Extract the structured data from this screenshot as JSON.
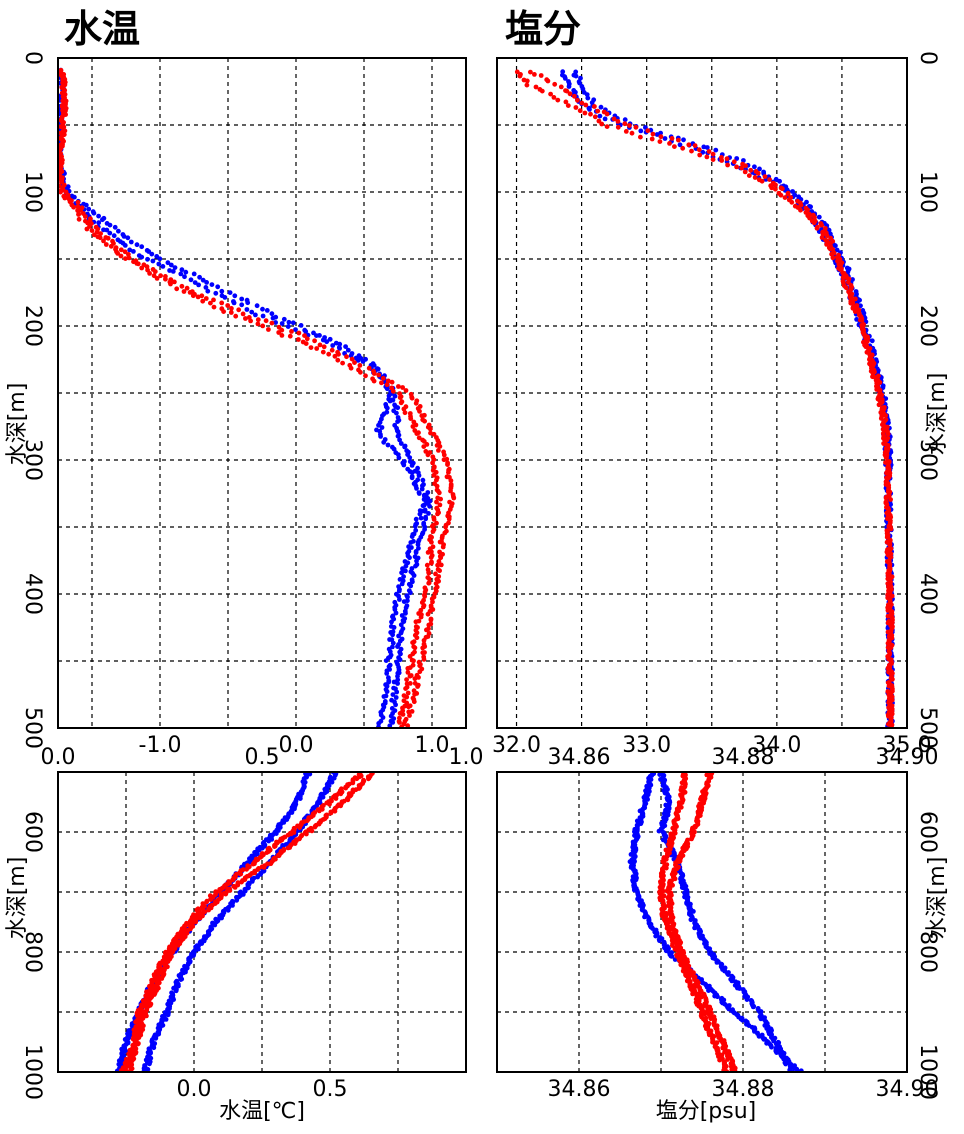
{
  "colors": {
    "cast_a": "#0000ff",
    "cast_b": "#ff0000",
    "frame": "#000000"
  },
  "chart_data": [
    {
      "id": "temp_upper",
      "type": "scatter",
      "title": "水温",
      "xlabel": "",
      "ylabel": "水深[m]",
      "xlim": [
        -1.75,
        1.25
      ],
      "ylim": [
        500,
        0
      ],
      "x_ticks": [
        -1.0,
        0.0,
        1.0
      ],
      "x_tick_labels": [
        "-1.0",
        "0.0",
        "1.0"
      ],
      "x_grid": [
        -1.5,
        -1.0,
        -0.5,
        0.0,
        0.5,
        1.0
      ],
      "y_ticks": [
        0,
        100,
        200,
        300,
        400,
        500
      ],
      "y_tick_labels": [
        "0",
        "100",
        "200",
        "300",
        "400",
        "500"
      ],
      "y_grid": [
        50,
        100,
        150,
        200,
        250,
        300,
        350,
        400,
        450
      ],
      "grid": true,
      "series": [
        {
          "color": "blue",
          "profiles": [
            {
              "x": [
                -1.72,
                -1.72,
                -1.73,
                -1.74,
                -1.7,
                -1.6,
                -1.4,
                -1.1,
                -0.7,
                -0.3,
                0.2,
                0.55,
                0.7,
                0.6,
                0.78,
                0.95,
                0.85,
                0.75,
                0.72,
                0.68,
                0.65,
                0.62
              ],
              "y": [
                10,
                30,
                60,
                80,
                100,
                110,
                130,
                150,
                170,
                190,
                210,
                230,
                250,
                280,
                300,
                330,
                360,
                400,
                420,
                450,
                480,
                500
              ]
            },
            {
              "x": [
                -1.72,
                -1.72,
                -1.73,
                -1.74,
                -1.68,
                -1.55,
                -1.3,
                -1.0,
                -0.6,
                -0.2,
                0.25,
                0.6,
                0.72,
                0.75,
                0.85,
                0.98,
                0.92,
                0.82,
                0.78,
                0.75,
                0.72,
                0.7
              ],
              "y": [
                10,
                30,
                60,
                80,
                100,
                110,
                130,
                150,
                170,
                190,
                210,
                230,
                250,
                280,
                300,
                330,
                360,
                400,
                420,
                450,
                480,
                500
              ]
            }
          ]
        },
        {
          "color": "red",
          "profiles": [
            {
              "x": [
                -1.72,
                -1.7,
                -1.72,
                -1.74,
                -1.72,
                -1.65,
                -1.5,
                -1.25,
                -0.9,
                -0.5,
                0.0,
                0.4,
                0.75,
                0.9,
                1.0,
                1.05,
                1.0,
                0.95,
                0.9,
                0.85,
                0.8,
                0.76
              ],
              "y": [
                10,
                30,
                60,
                80,
                100,
                110,
                130,
                150,
                170,
                190,
                210,
                230,
                250,
                280,
                300,
                330,
                360,
                400,
                420,
                450,
                480,
                500
              ]
            },
            {
              "x": [
                -1.72,
                -1.7,
                -1.72,
                -1.74,
                -1.7,
                -1.6,
                -1.45,
                -1.2,
                -0.85,
                -0.4,
                0.1,
                0.5,
                0.85,
                1.0,
                1.1,
                1.15,
                1.08,
                1.02,
                0.98,
                0.92,
                0.86,
                0.8
              ],
              "y": [
                10,
                30,
                60,
                80,
                100,
                110,
                130,
                150,
                170,
                190,
                210,
                230,
                250,
                280,
                300,
                330,
                360,
                400,
                420,
                450,
                480,
                500
              ]
            }
          ]
        }
      ]
    },
    {
      "id": "salt_upper",
      "type": "scatter",
      "title": "塩分",
      "xlabel": "",
      "ylabel": "水深[m]",
      "xlim": [
        31.85,
        35.0
      ],
      "ylim": [
        500,
        0
      ],
      "x_ticks": [
        32.0,
        33.0,
        34.0,
        35.0
      ],
      "x_tick_labels": [
        "32.0",
        "33.0",
        "34.0",
        "35.0"
      ],
      "x_grid": [
        32.0,
        32.5,
        33.0,
        33.5,
        34.0,
        34.5
      ],
      "y_ticks": [
        0,
        100,
        200,
        300,
        400,
        500
      ],
      "y_tick_labels": [
        "0",
        "100",
        "200",
        "300",
        "400",
        "500"
      ],
      "y_grid": [
        50,
        100,
        150,
        200,
        250,
        300,
        350,
        400,
        450
      ],
      "grid": true,
      "series": [
        {
          "color": "blue",
          "profiles": [
            {
              "x": [
                32.35,
                32.4,
                32.5,
                32.8,
                33.3,
                33.7,
                34.0,
                34.2,
                34.35,
                34.5,
                34.65,
                34.78,
                34.83,
                34.85,
                34.86,
                34.87,
                34.87,
                34.87
              ],
              "y": [
                10,
                20,
                35,
                50,
                65,
                80,
                95,
                110,
                130,
                160,
                200,
                240,
                270,
                300,
                350,
                400,
                450,
                500
              ]
            },
            {
              "x": [
                32.45,
                32.5,
                32.6,
                32.9,
                33.4,
                33.8,
                34.05,
                34.25,
                34.4,
                34.55,
                34.68,
                34.8,
                34.85,
                34.86,
                34.86,
                34.87,
                34.87,
                34.87
              ],
              "y": [
                10,
                20,
                35,
                50,
                65,
                80,
                95,
                110,
                130,
                160,
                200,
                240,
                270,
                300,
                350,
                400,
                450,
                500
              ]
            }
          ]
        },
        {
          "color": "red",
          "profiles": [
            {
              "x": [
                32.0,
                32.1,
                32.4,
                32.7,
                33.2,
                33.65,
                33.95,
                34.15,
                34.35,
                34.5,
                34.65,
                34.76,
                34.82,
                34.85,
                34.86,
                34.87,
                34.87,
                34.87
              ],
              "y": [
                10,
                20,
                35,
                50,
                65,
                80,
                95,
                110,
                130,
                160,
                200,
                240,
                270,
                300,
                350,
                400,
                450,
                500
              ]
            },
            {
              "x": [
                32.1,
                32.3,
                32.55,
                32.85,
                33.35,
                33.75,
                34.0,
                34.2,
                34.38,
                34.52,
                34.66,
                34.77,
                34.83,
                34.85,
                34.86,
                34.87,
                34.87,
                34.87
              ],
              "y": [
                10,
                20,
                35,
                50,
                65,
                80,
                95,
                110,
                130,
                160,
                200,
                240,
                270,
                300,
                350,
                400,
                450,
                500
              ]
            }
          ]
        }
      ]
    },
    {
      "id": "temp_lower",
      "type": "scatter",
      "title": "",
      "xlabel": "水温[℃]",
      "ylabel": "水深[m]",
      "xlim": [
        -0.5,
        1.0
      ],
      "ylim": [
        1000,
        500
      ],
      "x_ticks": [
        0.0,
        0.5
      ],
      "x_tick_labels": [
        "0.0",
        "0.5"
      ],
      "x_top_labels": [
        "0.0",
        "0.5",
        "1.0"
      ],
      "x_top_values": [
        -0.5,
        0.25,
        1.0
      ],
      "x_grid": [
        -0.25,
        0.0,
        0.25,
        0.5,
        0.75
      ],
      "y_ticks": [
        600,
        800,
        1000
      ],
      "y_tick_labels": [
        "600",
        "800",
        "1000"
      ],
      "y_grid": [
        600,
        700,
        800,
        900
      ],
      "grid": true,
      "series": [
        {
          "color": "blue",
          "profiles": [
            {
              "x": [
                0.42,
                0.38,
                0.3,
                0.2,
                0.1,
                0.0,
                -0.08,
                -0.15,
                -0.2,
                -0.25,
                -0.28
              ],
              "y": [
                500,
                550,
                600,
                650,
                700,
                750,
                800,
                850,
                900,
                950,
                1000
              ]
            },
            {
              "x": [
                0.52,
                0.46,
                0.38,
                0.28,
                0.18,
                0.08,
                0.0,
                -0.06,
                -0.1,
                -0.15,
                -0.18
              ],
              "y": [
                500,
                550,
                600,
                650,
                700,
                750,
                800,
                850,
                900,
                950,
                1000
              ]
            }
          ]
        },
        {
          "color": "red",
          "profiles": [
            {
              "x": [
                0.66,
                0.55,
                0.42,
                0.28,
                0.12,
                0.0,
                -0.08,
                -0.13,
                -0.18,
                -0.21,
                -0.24
              ],
              "y": [
                500,
                550,
                600,
                650,
                700,
                750,
                800,
                850,
                900,
                950,
                1000
              ]
            },
            {
              "x": [
                0.62,
                0.5,
                0.36,
                0.22,
                0.08,
                -0.02,
                -0.1,
                -0.15,
                -0.2,
                -0.22,
                -0.26
              ],
              "y": [
                500,
                550,
                600,
                650,
                700,
                750,
                800,
                850,
                900,
                950,
                1000
              ]
            }
          ]
        }
      ]
    },
    {
      "id": "salt_lower",
      "type": "scatter",
      "title": "",
      "xlabel": "塩分[psu]",
      "ylabel": "水深[m]",
      "xlim": [
        34.85,
        34.9
      ],
      "ylim": [
        1000,
        500
      ],
      "x_ticks": [
        34.86,
        34.88,
        34.9
      ],
      "x_tick_labels": [
        "34.86",
        "34.88",
        "34.90"
      ],
      "x_top_labels": [
        "34.86",
        "34.88",
        "34.90"
      ],
      "x_top_values": [
        34.86,
        34.88,
        34.9
      ],
      "x_grid": [
        34.86,
        34.87,
        34.88,
        34.89
      ],
      "y_ticks": [
        600,
        800,
        1000
      ],
      "y_tick_labels": [
        "600",
        "800",
        "1000"
      ],
      "y_grid": [
        600,
        700,
        800,
        900
      ],
      "grid": true,
      "series": [
        {
          "color": "blue",
          "profiles": [
            {
              "x": [
                34.869,
                34.868,
                34.867,
                34.8665,
                34.867,
                34.8685,
                34.871,
                34.875,
                34.879,
                34.883,
                34.887
              ],
              "y": [
                500,
                550,
                600,
                650,
                700,
                750,
                800,
                850,
                900,
                950,
                1000
              ]
            },
            {
              "x": [
                34.87,
                34.871,
                34.87,
                34.872,
                34.873,
                34.874,
                34.876,
                34.879,
                34.882,
                34.884,
                34.886
              ],
              "y": [
                500,
                550,
                600,
                650,
                700,
                750,
                800,
                850,
                900,
                950,
                1000
              ]
            }
          ]
        },
        {
          "color": "red",
          "profiles": [
            {
              "x": [
                34.873,
                34.8725,
                34.8715,
                34.8705,
                34.87,
                34.8705,
                34.872,
                34.8735,
                34.875,
                34.8765,
                34.878
              ],
              "y": [
                500,
                550,
                600,
                650,
                700,
                750,
                800,
                850,
                900,
                950,
                1000
              ]
            },
            {
              "x": [
                34.876,
                34.875,
                34.874,
                34.872,
                34.871,
                34.8712,
                34.8725,
                34.8742,
                34.876,
                34.8775,
                34.879
              ],
              "y": [
                500,
                550,
                600,
                650,
                700,
                750,
                800,
                850,
                900,
                950,
                1000
              ]
            }
          ]
        }
      ]
    }
  ]
}
